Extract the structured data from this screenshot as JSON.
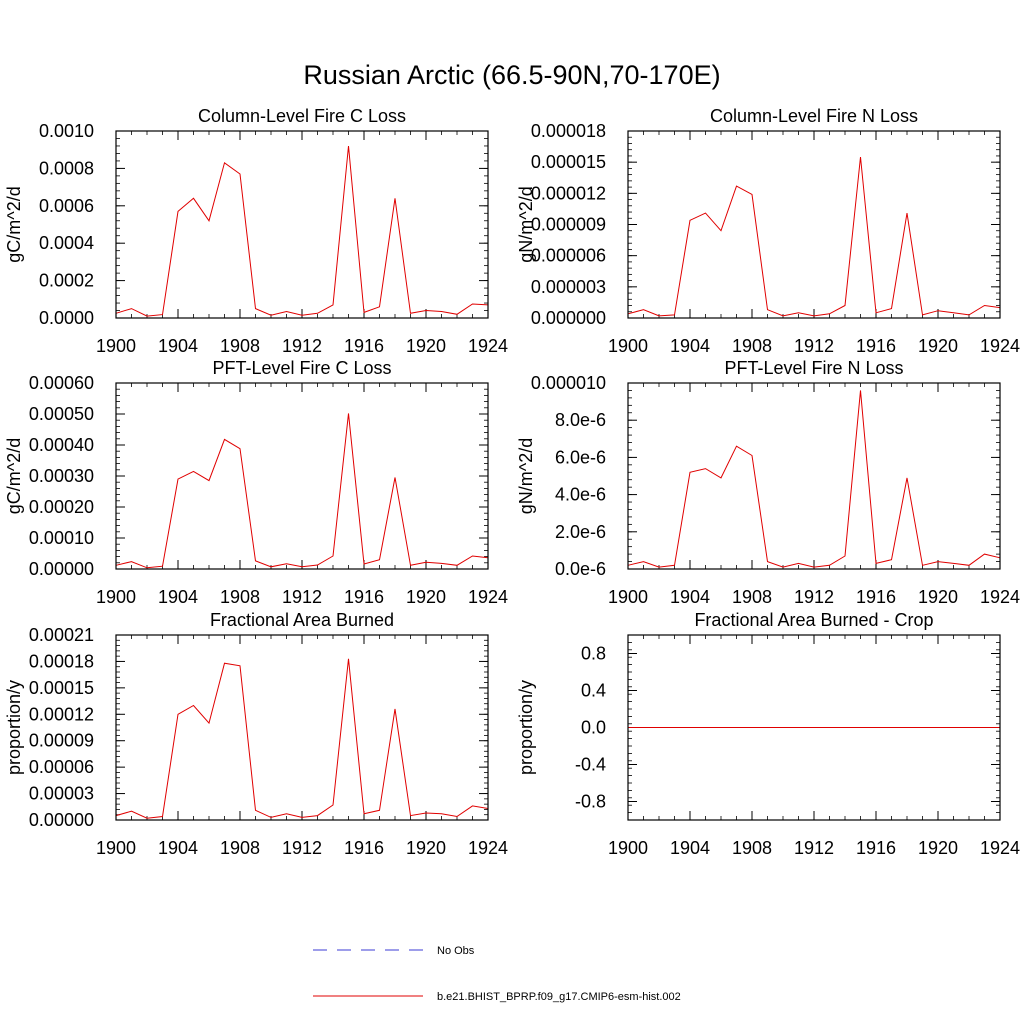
{
  "figure": {
    "title": "Russian Arctic (66.5-90N,70-170E)"
  },
  "legend": {
    "entries": [
      {
        "label": "No Obs",
        "color": "#3b3bd6",
        "style": "dashed"
      },
      {
        "label": "b.e21.BHIST_BPRP.f09_g17.CMIP6-esm-hist.002",
        "color": "#e00000",
        "style": "solid"
      }
    ]
  },
  "colors": {
    "series": "#e00000",
    "obs": "#3b3bd6",
    "axis": "#000000"
  },
  "chart_data": [
    {
      "type": "line",
      "title": "Column-Level Fire C Loss",
      "xlabel": "",
      "ylabel": "gC/m^2/d",
      "xlim": [
        1900,
        1924
      ],
      "ylim": [
        0,
        0.001
      ],
      "x_ticks": [
        "1900",
        "1904",
        "1908",
        "1912",
        "1916",
        "1920",
        "1924"
      ],
      "y_ticks": [
        "0.0000",
        "0.0002",
        "0.0004",
        "0.0006",
        "0.0008",
        "0.0010"
      ],
      "x": [
        1900,
        1901,
        1902,
        1903,
        1904,
        1905,
        1906,
        1907,
        1908,
        1909,
        1910,
        1911,
        1912,
        1913,
        1914,
        1915,
        1916,
        1917,
        1918,
        1919,
        1920,
        1921,
        1922,
        1923,
        1924
      ],
      "series": [
        {
          "name": "b.e21.BHIST_BPRP.f09_g17.CMIP6-esm-hist.002",
          "values": [
            2.5e-05,
            5e-05,
            1e-05,
            1.8e-05,
            0.00057,
            0.00064,
            0.00052,
            0.00083,
            0.00077,
            5e-05,
            1.5e-05,
            3.5e-05,
            1.5e-05,
            2.5e-05,
            7e-05,
            0.00092,
            3e-05,
            6e-05,
            0.00064,
            2.5e-05,
            4e-05,
            3.5e-05,
            2e-05,
            7.5e-05,
            7e-05
          ]
        }
      ]
    },
    {
      "type": "line",
      "title": "Column-Level Fire N Loss",
      "xlabel": "",
      "ylabel": "gN/m^2/d",
      "xlim": [
        1900,
        1924
      ],
      "ylim": [
        0,
        1.8e-05
      ],
      "x_ticks": [
        "1900",
        "1904",
        "1908",
        "1912",
        "1916",
        "1920",
        "1924"
      ],
      "y_ticks": [
        "0.000000",
        "0.000003",
        "0.000006",
        "0.000009",
        "0.000012",
        "0.000015",
        "0.000018"
      ],
      "x": [
        1900,
        1901,
        1902,
        1903,
        1904,
        1905,
        1906,
        1907,
        1908,
        1909,
        1910,
        1911,
        1912,
        1913,
        1914,
        1915,
        1916,
        1917,
        1918,
        1919,
        1920,
        1921,
        1922,
        1923,
        1924
      ],
      "series": [
        {
          "name": "b.e21.BHIST_BPRP.f09_g17.CMIP6-esm-hist.002",
          "values": [
            4e-07,
            8e-07,
            2e-07,
            3e-07,
            9.4e-06,
            1.01e-05,
            8.4e-06,
            1.27e-05,
            1.19e-05,
            8e-07,
            2e-07,
            5e-07,
            2e-07,
            4e-07,
            1.2e-06,
            1.55e-05,
            5e-07,
            9e-07,
            1.01e-05,
            3e-07,
            7e-07,
            5e-07,
            3e-07,
            1.2e-06,
            1e-06
          ]
        }
      ]
    },
    {
      "type": "line",
      "title": "PFT-Level Fire C Loss",
      "xlabel": "",
      "ylabel": "gC/m^2/d",
      "xlim": [
        1900,
        1924
      ],
      "ylim": [
        0,
        0.0006
      ],
      "x_ticks": [
        "1900",
        "1904",
        "1908",
        "1912",
        "1916",
        "1920",
        "1924"
      ],
      "y_ticks": [
        "0.00000",
        "0.00010",
        "0.00020",
        "0.00030",
        "0.00040",
        "0.00050",
        "0.00060"
      ],
      "x": [
        1900,
        1901,
        1902,
        1903,
        1904,
        1905,
        1906,
        1907,
        1908,
        1909,
        1910,
        1911,
        1912,
        1913,
        1914,
        1915,
        1916,
        1917,
        1918,
        1919,
        1920,
        1921,
        1922,
        1923,
        1924
      ],
      "series": [
        {
          "name": "b.e21.BHIST_BPRP.f09_g17.CMIP6-esm-hist.002",
          "values": [
            1.2e-05,
            2.4e-05,
            4e-06,
            9e-06,
            0.00029,
            0.000315,
            0.000285,
            0.000418,
            0.000388,
            2.6e-05,
            7e-06,
            1.7e-05,
            7e-06,
            1.3e-05,
            4.2e-05,
            0.000502,
            1.6e-05,
            3e-05,
            0.000295,
            1.2e-05,
            2.2e-05,
            1.8e-05,
            1.2e-05,
            4.2e-05,
            3.6e-05
          ]
        }
      ]
    },
    {
      "type": "line",
      "title": "PFT-Level Fire N Loss",
      "xlabel": "",
      "ylabel": "gN/m^2/d",
      "xlim": [
        1900,
        1924
      ],
      "ylim": [
        0,
        1e-05
      ],
      "x_ticks": [
        "1900",
        "1904",
        "1908",
        "1912",
        "1916",
        "1920",
        "1924"
      ],
      "y_ticks": [
        "0.0e-6",
        "2.0e-6",
        "4.0e-6",
        "6.0e-6",
        "8.0e-6",
        "0.000010"
      ],
      "x": [
        1900,
        1901,
        1902,
        1903,
        1904,
        1905,
        1906,
        1907,
        1908,
        1909,
        1910,
        1911,
        1912,
        1913,
        1914,
        1915,
        1916,
        1917,
        1918,
        1919,
        1920,
        1921,
        1922,
        1923,
        1924
      ],
      "series": [
        {
          "name": "b.e21.BHIST_BPRP.f09_g17.CMIP6-esm-hist.002",
          "values": [
            2e-07,
            4e-07,
            1e-07,
            2e-07,
            5.2e-06,
            5.4e-06,
            4.9e-06,
            6.6e-06,
            6.1e-06,
            4e-07,
            1e-07,
            3e-07,
            1e-07,
            2e-07,
            7e-07,
            9.6e-06,
            3e-07,
            5e-07,
            4.9e-06,
            2e-07,
            4e-07,
            3e-07,
            2e-07,
            8e-07,
            6e-07
          ]
        }
      ]
    },
    {
      "type": "line",
      "title": "Fractional Area Burned",
      "xlabel": "",
      "ylabel": "proportion/y",
      "xlim": [
        1900,
        1924
      ],
      "ylim": [
        0,
        0.00021
      ],
      "x_ticks": [
        "1900",
        "1904",
        "1908",
        "1912",
        "1916",
        "1920",
        "1924"
      ],
      "y_ticks": [
        "0.00000",
        "0.00003",
        "0.00006",
        "0.00009",
        "0.00012",
        "0.00015",
        "0.00018",
        "0.00021"
      ],
      "x": [
        1900,
        1901,
        1902,
        1903,
        1904,
        1905,
        1906,
        1907,
        1908,
        1909,
        1910,
        1911,
        1912,
        1913,
        1914,
        1915,
        1916,
        1917,
        1918,
        1919,
        1920,
        1921,
        1922,
        1923,
        1924
      ],
      "series": [
        {
          "name": "b.e21.BHIST_BPRP.f09_g17.CMIP6-esm-hist.002",
          "values": [
            5e-06,
            1e-05,
            2e-06,
            4e-06,
            0.00012,
            0.00013,
            0.00011,
            0.000178,
            0.000175,
            1.1e-05,
            3e-06,
            7e-06,
            3e-06,
            5e-06,
            1.7e-05,
            0.000183,
            7e-06,
            1.1e-05,
            0.000126,
            5e-06,
            8e-06,
            7e-06,
            4e-06,
            1.6e-05,
            1.3e-05
          ]
        }
      ]
    },
    {
      "type": "line",
      "title": "Fractional Area Burned - Crop",
      "xlabel": "",
      "ylabel": "proportion/y",
      "xlim": [
        1900,
        1924
      ],
      "ylim": [
        -1,
        1
      ],
      "x_ticks": [
        "1900",
        "1904",
        "1908",
        "1912",
        "1916",
        "1920",
        "1924"
      ],
      "y_ticks": [
        "-0.8",
        "-0.4",
        "0.0",
        "0.4",
        "0.8"
      ],
      "x": [
        1900,
        1924
      ],
      "series": [
        {
          "name": "b.e21.BHIST_BPRP.f09_g17.CMIP6-esm-hist.002",
          "values": [
            0,
            0
          ]
        }
      ]
    }
  ]
}
